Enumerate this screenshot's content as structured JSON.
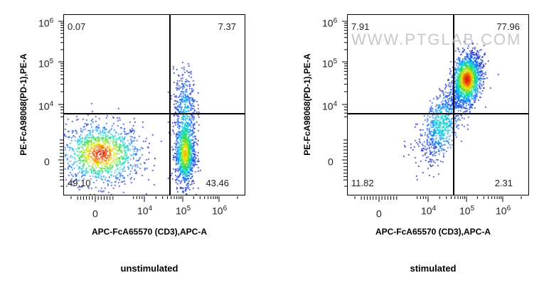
{
  "watermark": "WWW.PTGLAB.COM",
  "chart_data": [
    {
      "type": "scatter",
      "subtype": "flow-cytometry-density-plot",
      "title": "unstimulated",
      "xlabel": "APC-FcA65570 (CD3),APC-A",
      "ylabel": "PE-FcA98068(PD-1),PE-A",
      "x_ticks": [
        {
          "label": "0",
          "base": "",
          "exp": ""
        },
        {
          "label": "10",
          "base": "10",
          "exp": "4"
        },
        {
          "label": "10",
          "base": "10",
          "exp": "5"
        },
        {
          "label": "10",
          "base": "10",
          "exp": "6"
        }
      ],
      "y_ticks": [
        {
          "label": "0",
          "base": "",
          "exp": ""
        },
        {
          "label": "10",
          "base": "10",
          "exp": "4"
        },
        {
          "label": "10",
          "base": "10",
          "exp": "5"
        },
        {
          "label": "10",
          "base": "10",
          "exp": "6"
        }
      ],
      "scale": "biexponential; tick index 0=0, 1=1e4, 2=1e5, 3=1e6",
      "xlim_tick_index": [
        -0.7,
        3.7
      ],
      "ylim_tick_index": [
        -0.6,
        3.15
      ],
      "gate_tick_index": {
        "x": 1.67,
        "y": 0.83
      },
      "quadrants": {
        "upper_left": "0.07",
        "upper_right": "7.37",
        "lower_left": "49.10",
        "lower_right": "43.46"
      },
      "populations": [
        {
          "x": 0.1,
          "y": 0.12,
          "sx": 0.42,
          "sy": 0.28,
          "n": 1300,
          "rho": 0
        },
        {
          "x": 2.05,
          "y": 0.1,
          "sx": 0.13,
          "sy": 0.28,
          "n": 1000,
          "rho": 0
        },
        {
          "x": 2.05,
          "y": 0.9,
          "sx": 0.15,
          "sy": 0.45,
          "n": 450,
          "rho": 0
        }
      ]
    },
    {
      "type": "scatter",
      "subtype": "flow-cytometry-density-plot",
      "title": "stimulated",
      "xlabel": "APC-FcA65570 (CD3),APC-A",
      "ylabel": "PE-FcA98068(PD-1),PE-A",
      "x_ticks": [
        {
          "label": "0",
          "base": "",
          "exp": ""
        },
        {
          "label": "10",
          "base": "10",
          "exp": "4"
        },
        {
          "label": "10",
          "base": "10",
          "exp": "5"
        },
        {
          "label": "10",
          "base": "10",
          "exp": "6"
        }
      ],
      "y_ticks": [
        {
          "label": "0",
          "base": "",
          "exp": ""
        },
        {
          "label": "10",
          "base": "10",
          "exp": "4"
        },
        {
          "label": "10",
          "base": "10",
          "exp": "5"
        },
        {
          "label": "10",
          "base": "10",
          "exp": "6"
        }
      ],
      "scale": "biexponential; tick index 0=0, 1=1e4, 2=1e5, 3=1e6",
      "xlim_tick_index": [
        -0.7,
        3.7
      ],
      "ylim_tick_index": [
        -0.6,
        3.15
      ],
      "gate_tick_index": {
        "x": 1.67,
        "y": 0.83
      },
      "quadrants": {
        "upper_left": "7.91",
        "upper_right": "77.96",
        "lower_left": "11.82",
        "lower_right": "2.31"
      },
      "populations": [
        {
          "x": 2.0,
          "y": 1.6,
          "sx": 0.2,
          "sy": 0.3,
          "n": 1700,
          "rho": 0.3
        },
        {
          "x": 1.35,
          "y": 0.65,
          "sx": 0.28,
          "sy": 0.35,
          "n": 750,
          "rho": 0.6
        }
      ]
    }
  ]
}
